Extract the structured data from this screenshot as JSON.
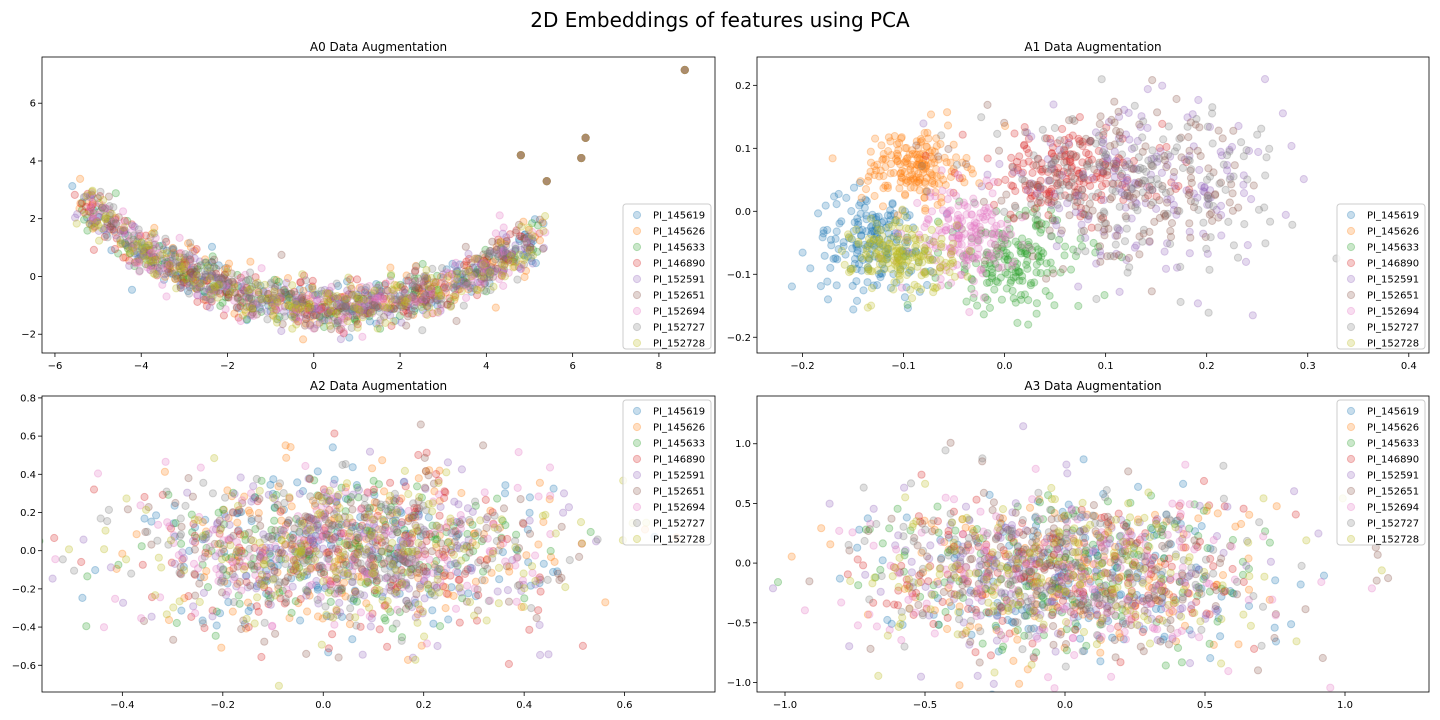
{
  "figure": {
    "suptitle": "2D Embeddings of features using PCA"
  },
  "colors": [
    "#1f77b4",
    "#ff7f0e",
    "#2ca02c",
    "#d62728",
    "#9467bd",
    "#8c564b",
    "#e377c2",
    "#7f7f7f",
    "#bcbd22"
  ],
  "legend_labels": [
    "PI_145619",
    "PI_145626",
    "PI_145633",
    "PI_146890",
    "PI_152591",
    "PI_152651",
    "PI_152694",
    "PI_152727",
    "PI_152728"
  ],
  "chart_data": [
    {
      "type": "scatter",
      "title": "A0 Data Augmentation",
      "xlim": [
        -6.3,
        9.3
      ],
      "ylim": [
        -2.65,
        7.6
      ],
      "xticks": [
        -6,
        -4,
        -2,
        0,
        2,
        4,
        6,
        8
      ],
      "yticks": [
        -2,
        0,
        2,
        4,
        6
      ],
      "legend_position": "lower right",
      "alpha": 0.25,
      "pattern": "parabola",
      "series": [
        {
          "name": "PI_145619",
          "center": [
            0.0,
            -0.6
          ]
        },
        {
          "name": "PI_145626",
          "center": [
            0.0,
            -0.6
          ]
        },
        {
          "name": "PI_145633",
          "center": [
            0.0,
            -0.6
          ]
        },
        {
          "name": "PI_146890",
          "center": [
            0.0,
            -0.6
          ]
        },
        {
          "name": "PI_152591",
          "center": [
            0.0,
            -0.6
          ]
        },
        {
          "name": "PI_152651",
          "center": [
            0.0,
            -0.6
          ]
        },
        {
          "name": "PI_152694",
          "center": [
            0.0,
            -0.6
          ]
        },
        {
          "name": "PI_152727",
          "center": [
            0.0,
            -0.6
          ]
        },
        {
          "name": "PI_152728",
          "center": [
            0.0,
            -0.6
          ]
        }
      ],
      "outliers": [
        [
          8.6,
          7.15
        ],
        [
          6.3,
          4.8
        ],
        [
          6.2,
          4.1
        ],
        [
          4.8,
          4.2
        ],
        [
          5.4,
          3.3
        ]
      ]
    },
    {
      "type": "scatter",
      "title": "A1 Data Augmentation",
      "xlim": [
        -0.245,
        0.42
      ],
      "ylim": [
        -0.225,
        0.245
      ],
      "xticks": [
        -0.2,
        -0.1,
        0.0,
        0.1,
        0.2,
        0.3,
        0.4
      ],
      "yticks": [
        -0.2,
        -0.1,
        0.0,
        0.1,
        0.2
      ],
      "legend_position": "lower right",
      "alpha": 0.25,
      "pattern": "clusters",
      "series": [
        {
          "name": "PI_145619",
          "center": [
            -0.13,
            -0.05
          ],
          "spread": [
            0.03,
            0.04
          ]
        },
        {
          "name": "PI_145626",
          "center": [
            -0.09,
            0.07
          ],
          "spread": [
            0.025,
            0.03
          ]
        },
        {
          "name": "PI_145633",
          "center": [
            0.01,
            -0.08
          ],
          "spread": [
            0.035,
            0.04
          ]
        },
        {
          "name": "PI_146890",
          "center": [
            0.06,
            0.06
          ],
          "spread": [
            0.05,
            0.035
          ]
        },
        {
          "name": "PI_152591",
          "center": [
            0.13,
            0.04
          ],
          "spread": [
            0.07,
            0.06
          ]
        },
        {
          "name": "PI_152651",
          "center": [
            0.12,
            0.03
          ],
          "spread": [
            0.07,
            0.06
          ]
        },
        {
          "name": "PI_152694",
          "center": [
            -0.04,
            -0.04
          ],
          "spread": [
            0.025,
            0.035
          ]
        },
        {
          "name": "PI_152727",
          "center": [
            0.12,
            0.05
          ],
          "spread": [
            0.08,
            0.06
          ]
        },
        {
          "name": "PI_152728",
          "center": [
            -0.1,
            -0.07
          ],
          "spread": [
            0.025,
            0.03
          ]
        }
      ]
    },
    {
      "type": "scatter",
      "title": "A2 Data Augmentation",
      "xlim": [
        -0.56,
        0.78
      ],
      "ylim": [
        -0.74,
        0.81
      ],
      "xticks": [
        -0.4,
        -0.2,
        0.0,
        0.2,
        0.4,
        0.6
      ],
      "yticks": [
        -0.6,
        -0.4,
        -0.2,
        0.0,
        0.2,
        0.4,
        0.6,
        0.8
      ],
      "legend_position": "upper right",
      "alpha": 0.25,
      "pattern": "blob",
      "series": [
        {
          "name": "PI_145619",
          "center": [
            0.05,
            0.0
          ],
          "spread": [
            0.2,
            0.2
          ]
        },
        {
          "name": "PI_145626",
          "center": [
            0.05,
            0.0
          ],
          "spread": [
            0.2,
            0.2
          ]
        },
        {
          "name": "PI_145633",
          "center": [
            0.05,
            0.0
          ],
          "spread": [
            0.2,
            0.2
          ]
        },
        {
          "name": "PI_146890",
          "center": [
            0.05,
            0.0
          ],
          "spread": [
            0.2,
            0.2
          ]
        },
        {
          "name": "PI_152591",
          "center": [
            0.05,
            0.0
          ],
          "spread": [
            0.2,
            0.2
          ]
        },
        {
          "name": "PI_152651",
          "center": [
            0.05,
            0.0
          ],
          "spread": [
            0.2,
            0.2
          ]
        },
        {
          "name": "PI_152694",
          "center": [
            0.05,
            0.0
          ],
          "spread": [
            0.2,
            0.2
          ]
        },
        {
          "name": "PI_152727",
          "center": [
            0.05,
            0.0
          ],
          "spread": [
            0.2,
            0.2
          ]
        },
        {
          "name": "PI_152728",
          "center": [
            0.05,
            0.0
          ],
          "spread": [
            0.2,
            0.2
          ]
        }
      ]
    },
    {
      "type": "scatter",
      "title": "A3 Data Augmentation",
      "xlim": [
        -1.1,
        1.3
      ],
      "ylim": [
        -1.08,
        1.4
      ],
      "xticks": [
        -1.0,
        -0.5,
        0.0,
        0.5,
        1.0
      ],
      "yticks": [
        -1.0,
        -0.5,
        0.0,
        0.5,
        1.0
      ],
      "legend_position": "upper right",
      "alpha": 0.25,
      "pattern": "blob",
      "series": [
        {
          "name": "PI_145619",
          "center": [
            0.0,
            -0.1
          ],
          "spread": [
            0.35,
            0.33
          ]
        },
        {
          "name": "PI_145626",
          "center": [
            0.0,
            -0.1
          ],
          "spread": [
            0.35,
            0.33
          ]
        },
        {
          "name": "PI_145633",
          "center": [
            0.0,
            -0.1
          ],
          "spread": [
            0.35,
            0.33
          ]
        },
        {
          "name": "PI_146890",
          "center": [
            0.0,
            -0.1
          ],
          "spread": [
            0.35,
            0.33
          ]
        },
        {
          "name": "PI_152591",
          "center": [
            0.0,
            -0.1
          ],
          "spread": [
            0.35,
            0.33
          ]
        },
        {
          "name": "PI_152651",
          "center": [
            0.0,
            -0.1
          ],
          "spread": [
            0.35,
            0.33
          ]
        },
        {
          "name": "PI_152694",
          "center": [
            0.0,
            -0.1
          ],
          "spread": [
            0.35,
            0.33
          ]
        },
        {
          "name": "PI_152727",
          "center": [
            0.0,
            -0.1
          ],
          "spread": [
            0.35,
            0.33
          ]
        },
        {
          "name": "PI_152728",
          "center": [
            0.0,
            -0.1
          ],
          "spread": [
            0.35,
            0.33
          ]
        }
      ]
    }
  ]
}
